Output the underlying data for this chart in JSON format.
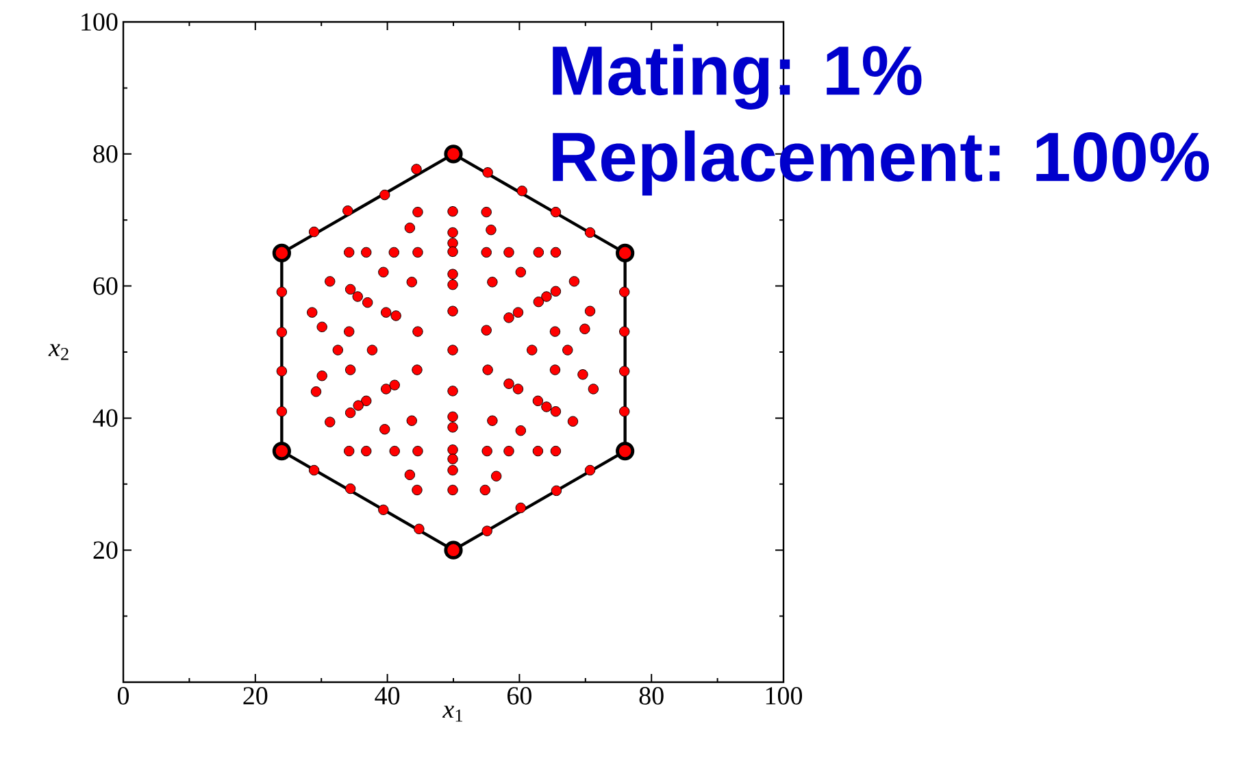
{
  "chart_data": {
    "type": "scatter",
    "xlabel": "*x*$_{1}$",
    "ylabel": "*x*$_{2}$",
    "xlim": [
      0,
      100
    ],
    "ylim": [
      0,
      100
    ],
    "xticks": [
      0,
      20,
      40,
      60,
      80,
      100
    ],
    "yticks": [
      {
        "value": 0,
        "label": null
      },
      20,
      40,
      60,
      80,
      100
    ],
    "tick_labels": "xy",
    "annotations": [
      "Mating: 1%",
      "Replacement: 100%"
    ],
    "series": [
      {
        "type": "line",
        "color": "#000000",
        "marker": "none",
        "line_style": "solid",
        "x": [
          24,
          50,
          76
        ],
        "values": [
          65,
          80,
          65
        ]
      },
      {
        "type": "line",
        "color": "#000000",
        "marker": "none",
        "line_style": "solid",
        "x": [
          24,
          50,
          76
        ],
        "values": [
          35,
          20,
          35
        ]
      },
      {
        "type": "line",
        "color": "#000000",
        "marker": "none",
        "line_style": "solid",
        "x": [
          24,
          24
        ],
        "values": [
          35,
          65
        ]
      },
      {
        "type": "line",
        "color": "#000000",
        "marker": "none",
        "line_style": "solid",
        "x": [
          76,
          76
        ],
        "values": [
          35,
          65
        ]
      },
      {
        "type": "scatter",
        "color": "#ff0000",
        "marker": "circle",
        "x": [
          50,
          76,
          76,
          50,
          24,
          24
        ],
        "values": [
          80,
          65,
          35,
          20,
          35,
          65
        ]
      },
      {
        "color": "#ff0000",
        "marker": "circle",
        "x": [
          28.9,
          34.0,
          39.6,
          44.4,
          55.2,
          60.4,
          65.5,
          70.7,
          24,
          24,
          24,
          24,
          75.9,
          75.9,
          75.9,
          75.9,
          28.9,
          34.4,
          39.4,
          44.8,
          70.7,
          65.6,
          60.2,
          55.1,
          49.9,
          49.9,
          49.9,
          49.9,
          49.9,
          49.9,
          49.9,
          49.9,
          49.9,
          49.9,
          49.9,
          49.9,
          49.9,
          49.9,
          49.9,
          44.6,
          43.4,
          34.2,
          36.8,
          41.0,
          44.6,
          39.4,
          31.3,
          34.4,
          35.5,
          37.0,
          43.7,
          28.6,
          39.8,
          41.3,
          30.1,
          34.2,
          44.6,
          32.5,
          37.7,
          55.0,
          55.7,
          55.0,
          58.4,
          62.9,
          65.5,
          60.2,
          55.9,
          68.3,
          65.5,
          64.1,
          62.9,
          70.7,
          59.8,
          58.4,
          55.0,
          65.4,
          69.9,
          61.9,
          67.3,
          30.1,
          34.4,
          29.2,
          44.5,
          39.8,
          41.1,
          36.8,
          35.6,
          34.4,
          31.3,
          39.6,
          43.7,
          34.2,
          36.8,
          41.1,
          44.6,
          43.4,
          44.5,
          55.2,
          58.4,
          59.8,
          65.4,
          69.6,
          71.2,
          62.8,
          64.1,
          65.5,
          68.1,
          55.9,
          60.2,
          55.1,
          58.4,
          62.8,
          65.5,
          56.5,
          54.8
        ],
        "values": [
          68.2,
          71.4,
          73.8,
          77.7,
          77.2,
          74.4,
          71.2,
          68.1,
          59.1,
          53.0,
          47.1,
          41.0,
          59.1,
          53.1,
          47.1,
          41.0,
          32.1,
          29.3,
          26.1,
          23.2,
          32.1,
          29.0,
          26.4,
          22.9,
          71.3,
          68.1,
          66.5,
          65.2,
          61.8,
          60.2,
          56.2,
          50.3,
          44.1,
          40.2,
          38.6,
          35.2,
          33.8,
          32.1,
          29.1,
          71.2,
          68.8,
          65.1,
          65.1,
          65.1,
          65.1,
          62.1,
          60.7,
          59.5,
          58.4,
          57.5,
          60.6,
          56.0,
          56.0,
          55.5,
          53.8,
          53.1,
          53.1,
          50.3,
          50.3,
          71.2,
          68.5,
          65.1,
          65.1,
          65.1,
          65.1,
          62.1,
          60.6,
          60.7,
          59.2,
          58.4,
          57.6,
          56.2,
          56.0,
          55.2,
          53.3,
          53.1,
          53.5,
          50.3,
          50.3,
          46.4,
          47.3,
          44.0,
          47.3,
          44.4,
          45.0,
          42.6,
          41.9,
          40.8,
          39.4,
          38.3,
          39.6,
          35.0,
          35.0,
          35.0,
          35.0,
          31.4,
          29.1,
          47.3,
          45.2,
          44.4,
          47.3,
          46.6,
          44.4,
          42.6,
          41.7,
          41.0,
          39.5,
          39.6,
          38.1,
          35.0,
          35.0,
          35.0,
          35.0,
          31.2,
          29.1
        ]
      }
    ]
  }
}
